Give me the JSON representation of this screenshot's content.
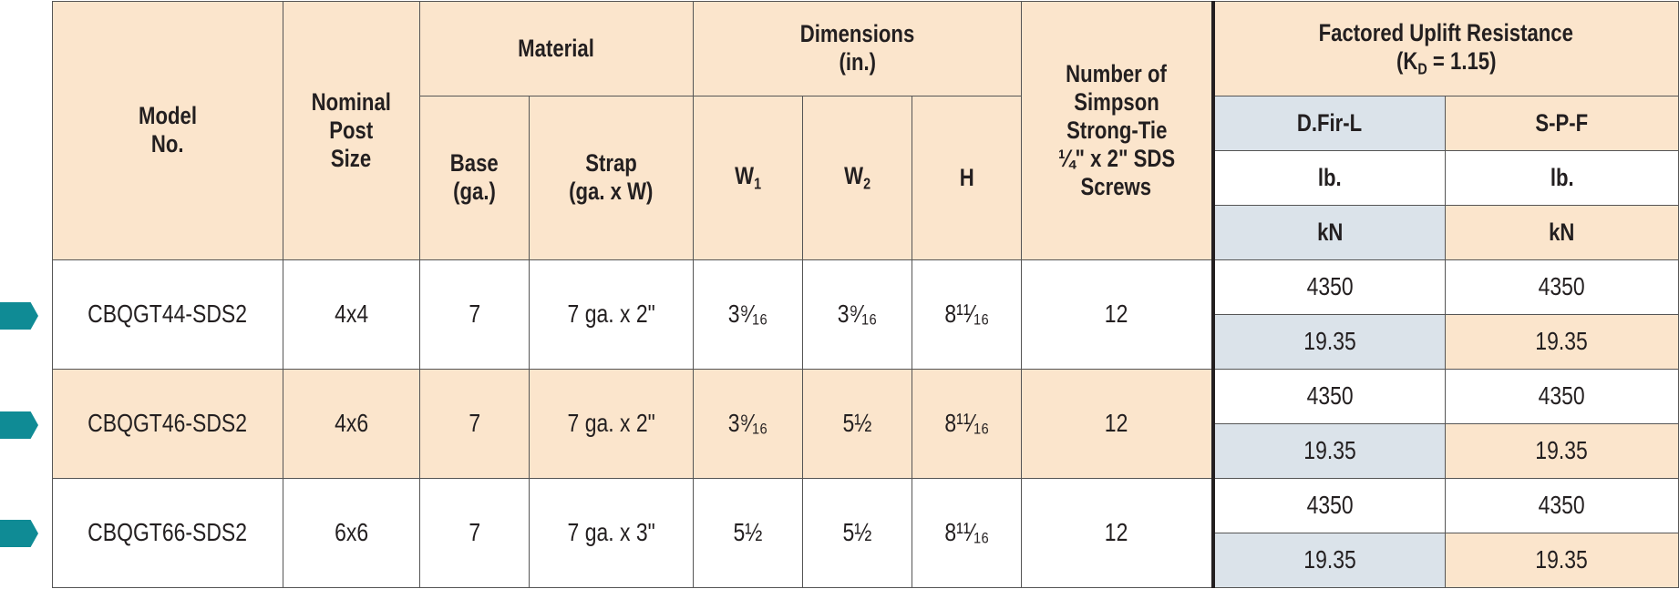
{
  "headers": {
    "model": [
      "Model",
      "No."
    ],
    "post": [
      "Nominal",
      "Post",
      "Size"
    ],
    "material": "Material",
    "base": [
      "Base",
      "(ga.)"
    ],
    "strap": [
      "Strap",
      "(ga. x W)"
    ],
    "dimensions": [
      "Dimensions",
      "(in.)"
    ],
    "w1": "W",
    "w1_sub": "1",
    "w2": "W",
    "w2_sub": "2",
    "h": "H",
    "screws": [
      "Number of",
      "Simpson",
      "Strong-Tie",
      "¼\" x 2\" SDS",
      "Screws"
    ],
    "uplift": "Factored Uplift Resistance",
    "uplift_kd_pre": "(K",
    "uplift_kd_sub": "D",
    "uplift_kd_post": " = 1.15)",
    "dfir": "D.Fir-L",
    "spf": "S-P-F",
    "unit_lb": "lb.",
    "unit_kn": "kN"
  },
  "rows": [
    {
      "model": "CBQGT44-SDS2",
      "post": "4x4",
      "base": "7",
      "strap": "7 ga. x 2\"",
      "w1": "3⁹⁄₁₆",
      "w2": "3⁹⁄₁₆",
      "h": "8¹¹⁄₁₆",
      "screws": "12",
      "dfir_lb": "4350",
      "spf_lb": "4350",
      "dfir_kn": "19.35",
      "spf_kn": "19.35"
    },
    {
      "model": "CBQGT46-SDS2",
      "post": "4x6",
      "base": "7",
      "strap": "7 ga. x 2\"",
      "w1": "3⁹⁄₁₆",
      "w2": "5½",
      "h": "8¹¹⁄₁₆",
      "screws": "12",
      "dfir_lb": "4350",
      "spf_lb": "4350",
      "dfir_kn": "19.35",
      "spf_kn": "19.35"
    },
    {
      "model": "CBQGT66-SDS2",
      "post": "6x6",
      "base": "7",
      "strap": "7 ga. x 3\"",
      "w1": "5½",
      "w2": "5½",
      "h": "8¹¹⁄₁₆",
      "screws": "12",
      "dfir_lb": "4350",
      "spf_lb": "4350",
      "dfir_kn": "19.35",
      "spf_kn": "19.35"
    }
  ],
  "colors": {
    "header": "#fbe5cc",
    "kn_dfir": "#dbe3ea",
    "marker": "#0f8b95"
  }
}
